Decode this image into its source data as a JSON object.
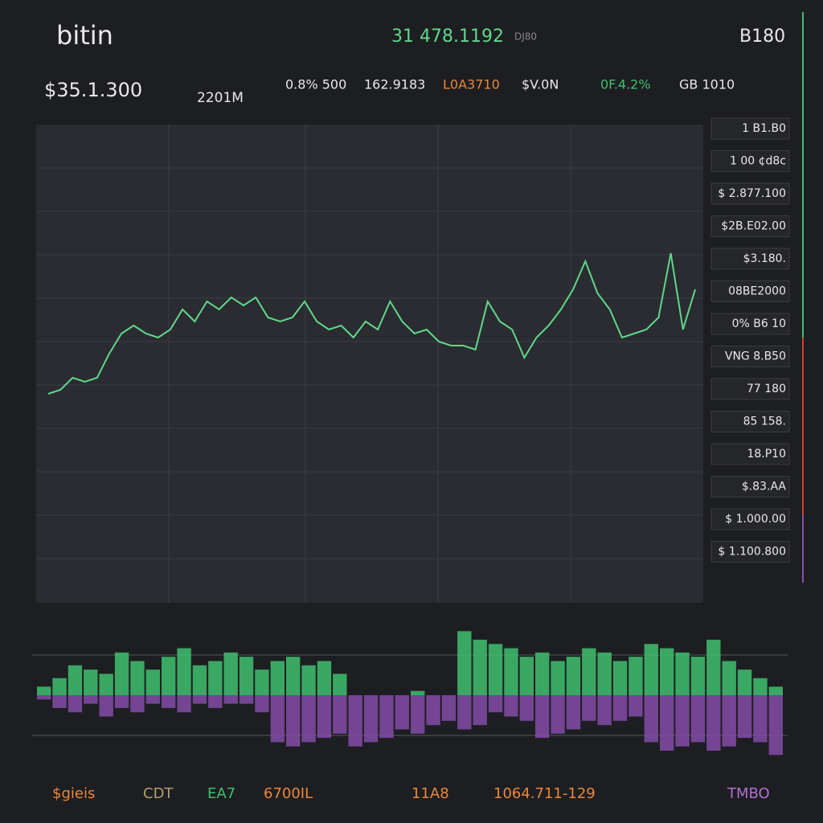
{
  "header": {
    "brand": "bitin",
    "pair": "31 478.1192",
    "pair_note": "DJ80",
    "account": "B180"
  },
  "ticker": {
    "price": "$35.1.300",
    "volume": "2201M",
    "stats": [
      {
        "text": "0.8% 500",
        "color": "#e8e8e8"
      },
      {
        "text": "162.9183",
        "color": "#e8e8e8"
      },
      {
        "text": "L0A3710",
        "color": "#e8883a"
      },
      {
        "text": "$V.0N",
        "color": "#e8e8e8"
      },
      {
        "text": "0F.4.2%",
        "color": "#3fbf6f"
      },
      {
        "text": "GB 1010",
        "color": "#e8e8e8"
      }
    ]
  },
  "order_book": [
    "1 B1.B0",
    "1 00 ¢d8c",
    "$ 2.877.100",
    "$2B.E02.00",
    "$3.180.",
    "08BE2000",
    "0% B6 10",
    "VNG 8.B50",
    "77 180",
    "85 158.",
    "18.P10",
    "$.83.AA",
    "$ 1.000.00",
    "$ 1.100.800"
  ],
  "price_chart": {
    "values": [
      260,
      265,
      280,
      275,
      280,
      310,
      335,
      345,
      335,
      330,
      340,
      365,
      350,
      375,
      365,
      380,
      370,
      380,
      355,
      350,
      355,
      375,
      350,
      340,
      345,
      330,
      350,
      340,
      375,
      350,
      335,
      340,
      325,
      320,
      320,
      315,
      375,
      350,
      340,
      305,
      330,
      345,
      365,
      390,
      425,
      385,
      365,
      330,
      335,
      340,
      355,
      435,
      340,
      390
    ],
    "ylim": [
      0,
      595
    ],
    "color": "#5fd88a",
    "volume": {
      "up": [
        10,
        20,
        35,
        30,
        25,
        50,
        40,
        30,
        45,
        55,
        35,
        40,
        50,
        45,
        30,
        40,
        45,
        35,
        40,
        25,
        0,
        0,
        0,
        0,
        5,
        0,
        0,
        75,
        65,
        60,
        55,
        45,
        50,
        40,
        45,
        55,
        50,
        40,
        45,
        60,
        55,
        50,
        45,
        65,
        40,
        30,
        20,
        10
      ],
      "down": [
        5,
        15,
        20,
        10,
        25,
        15,
        20,
        10,
        15,
        20,
        10,
        15,
        10,
        10,
        20,
        55,
        60,
        55,
        50,
        45,
        60,
        55,
        50,
        40,
        45,
        35,
        30,
        40,
        35,
        20,
        25,
        30,
        50,
        45,
        40,
        30,
        35,
        30,
        25,
        55,
        65,
        60,
        55,
        65,
        60,
        50,
        55,
        70
      ],
      "vlim": [
        0,
        80
      ],
      "up_color": "#3fbf6f",
      "down_color": "#8a4fb0"
    }
  },
  "footer": [
    {
      "text": "$gieis",
      "color": "#e8883a"
    },
    {
      "text": "CDT",
      "color": "#b0a070"
    },
    {
      "text": "EA7",
      "color": "#3fbf6f"
    },
    {
      "text": "6700IL",
      "color": "#e8883a"
    },
    {
      "text": "11A8",
      "color": "#e8883a"
    },
    {
      "text": "1064.711-129",
      "color": "#e8883a"
    },
    {
      "text": "TMBO",
      "color": "#b070d0"
    }
  ]
}
